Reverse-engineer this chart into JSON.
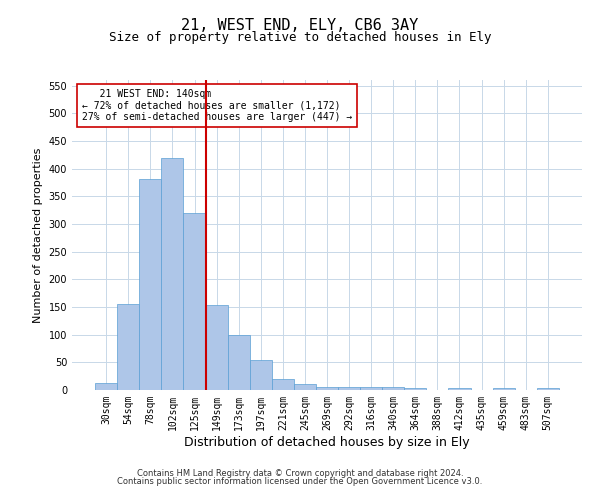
{
  "title": "21, WEST END, ELY, CB6 3AY",
  "subtitle": "Size of property relative to detached houses in Ely",
  "xlabel": "Distribution of detached houses by size in Ely",
  "ylabel": "Number of detached properties",
  "categories": [
    "30sqm",
    "54sqm",
    "78sqm",
    "102sqm",
    "125sqm",
    "149sqm",
    "173sqm",
    "197sqm",
    "221sqm",
    "245sqm",
    "269sqm",
    "292sqm",
    "316sqm",
    "340sqm",
    "364sqm",
    "388sqm",
    "412sqm",
    "435sqm",
    "459sqm",
    "483sqm",
    "507sqm"
  ],
  "values": [
    12,
    155,
    381,
    420,
    320,
    153,
    100,
    55,
    20,
    10,
    5,
    5,
    5,
    5,
    3,
    0,
    3,
    0,
    3,
    0,
    3
  ],
  "bar_color": "#aec6e8",
  "bar_edge_color": "#5a9fd4",
  "vline_x": 4.5,
  "vline_color": "#cc0000",
  "annotation_text": "   21 WEST END: 140sqm\n← 72% of detached houses are smaller (1,172)\n27% of semi-detached houses are larger (447) →",
  "annotation_box_color": "#ffffff",
  "annotation_box_edge": "#cc0000",
  "ylim": [
    0,
    560
  ],
  "yticks": [
    0,
    50,
    100,
    150,
    200,
    250,
    300,
    350,
    400,
    450,
    500,
    550
  ],
  "footer_line1": "Contains HM Land Registry data © Crown copyright and database right 2024.",
  "footer_line2": "Contains public sector information licensed under the Open Government Licence v3.0.",
  "bg_color": "#ffffff",
  "grid_color": "#c8d8e8",
  "title_fontsize": 11,
  "subtitle_fontsize": 9,
  "ylabel_fontsize": 8,
  "xlabel_fontsize": 9,
  "tick_fontsize": 7,
  "annot_fontsize": 7,
  "footer_fontsize": 6
}
